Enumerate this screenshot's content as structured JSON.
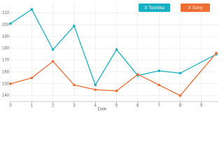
{
  "chart_data": {
    "type": "line",
    "x": [
      0,
      1,
      2,
      3,
      4,
      5,
      6,
      7,
      8,
      9.7
    ],
    "x_label": "Date",
    "series": [
      {
        "name": "X Toshiba",
        "color": "#17b1c3",
        "values": [
          201,
          213,
          179,
          199,
          149,
          179,
          157,
          161,
          159,
          175
        ]
      },
      {
        "name": "X Sony",
        "color": "#ef6e33",
        "values": [
          150,
          155,
          169,
          149,
          145,
          144,
          158,
          149,
          140,
          176
        ]
      }
    ],
    "xlim": [
      0,
      9.8
    ],
    "xticks": [
      0,
      1,
      2,
      3,
      4,
      5,
      6,
      7,
      8,
      9
    ],
    "ylim": [
      135,
      218
    ],
    "yticks": [
      140,
      150,
      160,
      170,
      180,
      190,
      200,
      210
    ],
    "grid": true
  }
}
